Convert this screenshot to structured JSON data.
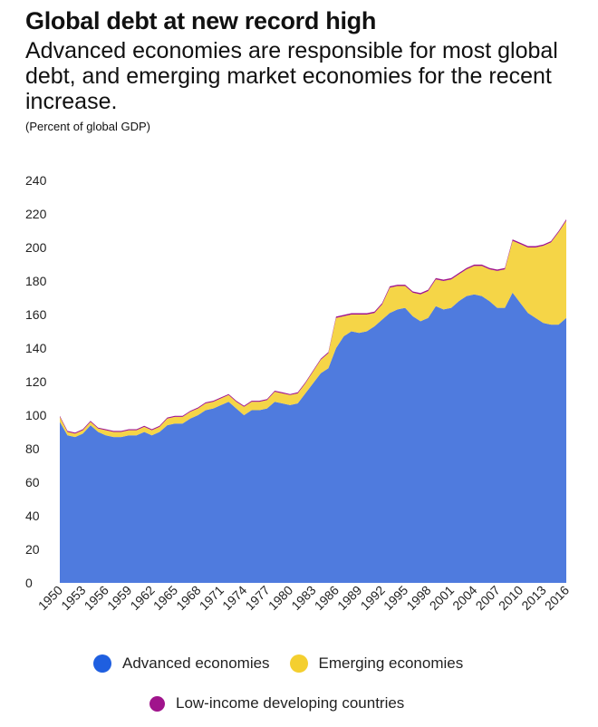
{
  "chart_data": {
    "type": "area",
    "title": "Global debt at new record high",
    "subtitle": "Advanced economies are responsible for most global debt, and emerging market economies for the recent increase.",
    "unit_note": "(Percent of global GDP)",
    "xlabel": "",
    "ylabel": "",
    "ylim": [
      0,
      240
    ],
    "y_ticks": [
      0,
      20,
      40,
      60,
      80,
      100,
      120,
      140,
      160,
      180,
      200,
      220,
      240
    ],
    "x_tick_labels": [
      "1950",
      "1953",
      "1956",
      "1959",
      "1962",
      "1965",
      "1968",
      "1971",
      "1974",
      "1977",
      "1980",
      "1983",
      "1986",
      "1989",
      "1992",
      "1995",
      "1998",
      "2001",
      "2004",
      "2007",
      "2010",
      "2013",
      "2016"
    ],
    "grid": false,
    "legend_position": "bottom",
    "stacked": true,
    "x": [
      1950,
      1951,
      1952,
      1953,
      1954,
      1955,
      1956,
      1957,
      1958,
      1959,
      1960,
      1961,
      1962,
      1963,
      1964,
      1965,
      1966,
      1967,
      1968,
      1969,
      1970,
      1971,
      1972,
      1973,
      1974,
      1975,
      1976,
      1977,
      1978,
      1979,
      1980,
      1981,
      1982,
      1983,
      1984,
      1985,
      1986,
      1987,
      1988,
      1989,
      1990,
      1991,
      1992,
      1993,
      1994,
      1995,
      1996,
      1997,
      1998,
      1999,
      2000,
      2001,
      2002,
      2003,
      2004,
      2005,
      2006,
      2007,
      2008,
      2009,
      2010,
      2011,
      2012,
      2013,
      2014,
      2015,
      2016
    ],
    "series": [
      {
        "name": "Advanced economies",
        "color": "#4f7bde",
        "values": [
          96,
          88,
          87,
          89,
          94,
          90,
          88,
          87,
          87,
          88,
          88,
          90,
          88,
          90,
          94,
          95,
          95,
          98,
          100,
          103,
          104,
          106,
          108,
          104,
          100,
          103,
          103,
          104,
          108,
          107,
          106,
          107,
          113,
          119,
          125,
          128,
          140,
          147,
          150,
          149,
          150,
          153,
          157,
          161,
          163,
          164,
          159,
          156,
          158,
          165,
          163,
          164,
          168,
          171,
          172,
          171,
          168,
          164,
          164,
          173,
          167,
          161,
          158,
          155,
          154,
          154,
          158
        ]
      },
      {
        "name": "Emerging economies",
        "color": "#f5d547",
        "values": [
          3,
          2,
          2,
          2,
          2,
          2,
          3,
          3,
          3,
          3,
          3,
          3,
          3,
          3,
          4,
          4,
          4,
          4,
          4,
          4,
          4,
          4,
          4,
          4,
          5,
          5,
          5,
          5,
          6,
          6,
          6,
          6,
          6,
          7,
          8,
          9,
          18,
          12,
          10,
          11,
          10,
          8,
          9,
          15,
          14,
          13,
          14,
          16,
          16,
          16,
          17,
          17,
          16,
          16,
          17,
          18,
          19,
          22,
          23,
          31,
          35,
          39,
          42,
          46,
          49,
          55,
          58
        ]
      },
      {
        "name": "Low-income developing countries",
        "color": "#a0148c",
        "values": [
          0.6,
          0.6,
          0.6,
          0.6,
          0.6,
          0.6,
          0.6,
          0.6,
          0.6,
          0.6,
          0.6,
          0.6,
          0.6,
          0.6,
          0.6,
          0.6,
          0.6,
          0.6,
          0.6,
          0.6,
          0.6,
          0.6,
          0.6,
          0.6,
          0.6,
          0.6,
          0.6,
          0.6,
          0.6,
          0.6,
          0.6,
          0.6,
          0.6,
          0.6,
          0.6,
          0.6,
          0.8,
          0.8,
          0.8,
          0.8,
          0.8,
          0.8,
          0.8,
          0.8,
          0.8,
          0.8,
          0.8,
          0.8,
          0.8,
          0.8,
          0.8,
          0.8,
          0.8,
          0.8,
          0.8,
          0.8,
          0.8,
          0.8,
          0.8,
          0.8,
          0.8,
          0.8,
          0.8,
          0.8,
          0.8,
          0.8,
          0.8
        ]
      }
    ]
  },
  "legend": {
    "advanced": "Advanced economies",
    "emerging": "Emerging economies",
    "lic": "Low-income developing countries"
  }
}
